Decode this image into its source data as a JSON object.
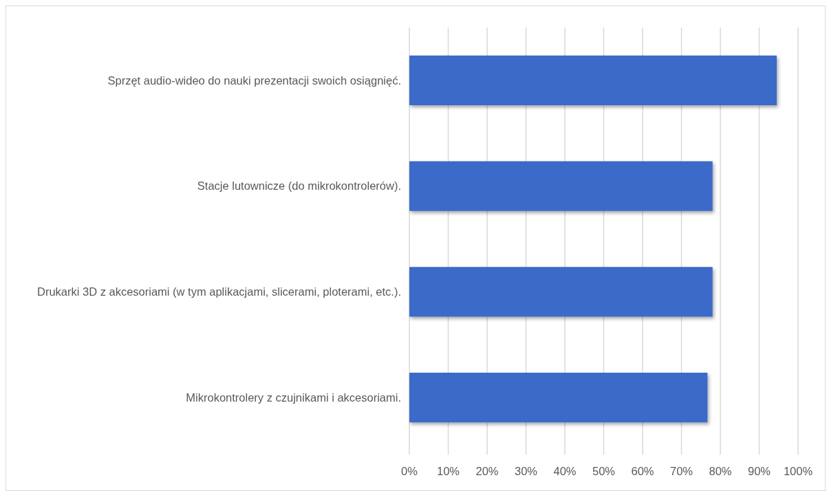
{
  "chart_data": {
    "type": "bar",
    "orientation": "horizontal",
    "categories": [
      "Sprzęt audio-wideo do nauki prezentacji swoich osiągnięć.",
      "Stacje lutownicze (do mikrokontrolerów).",
      "Drukarki 3D z akcesoriami (w tym aplikacjami, slicerami, ploterami, etc.).",
      "Mikrokontrolery z czujnikami i akcesoriami."
    ],
    "values": [
      94.5,
      78,
      78,
      76.7
    ],
    "color": "#3a6bc8",
    "xlim": [
      0,
      100
    ],
    "xticks": [
      {
        "value": 0,
        "label": "0%"
      },
      {
        "value": 10,
        "label": "10%"
      },
      {
        "value": 20,
        "label": "20%"
      },
      {
        "value": 30,
        "label": "30%"
      },
      {
        "value": 40,
        "label": "40%"
      },
      {
        "value": 50,
        "label": "50%"
      },
      {
        "value": 60,
        "label": "60%"
      },
      {
        "value": 70,
        "label": "70%"
      },
      {
        "value": 80,
        "label": "80%"
      },
      {
        "value": 90,
        "label": "90%"
      },
      {
        "value": 100,
        "label": "100%"
      }
    ],
    "grid": "x"
  }
}
